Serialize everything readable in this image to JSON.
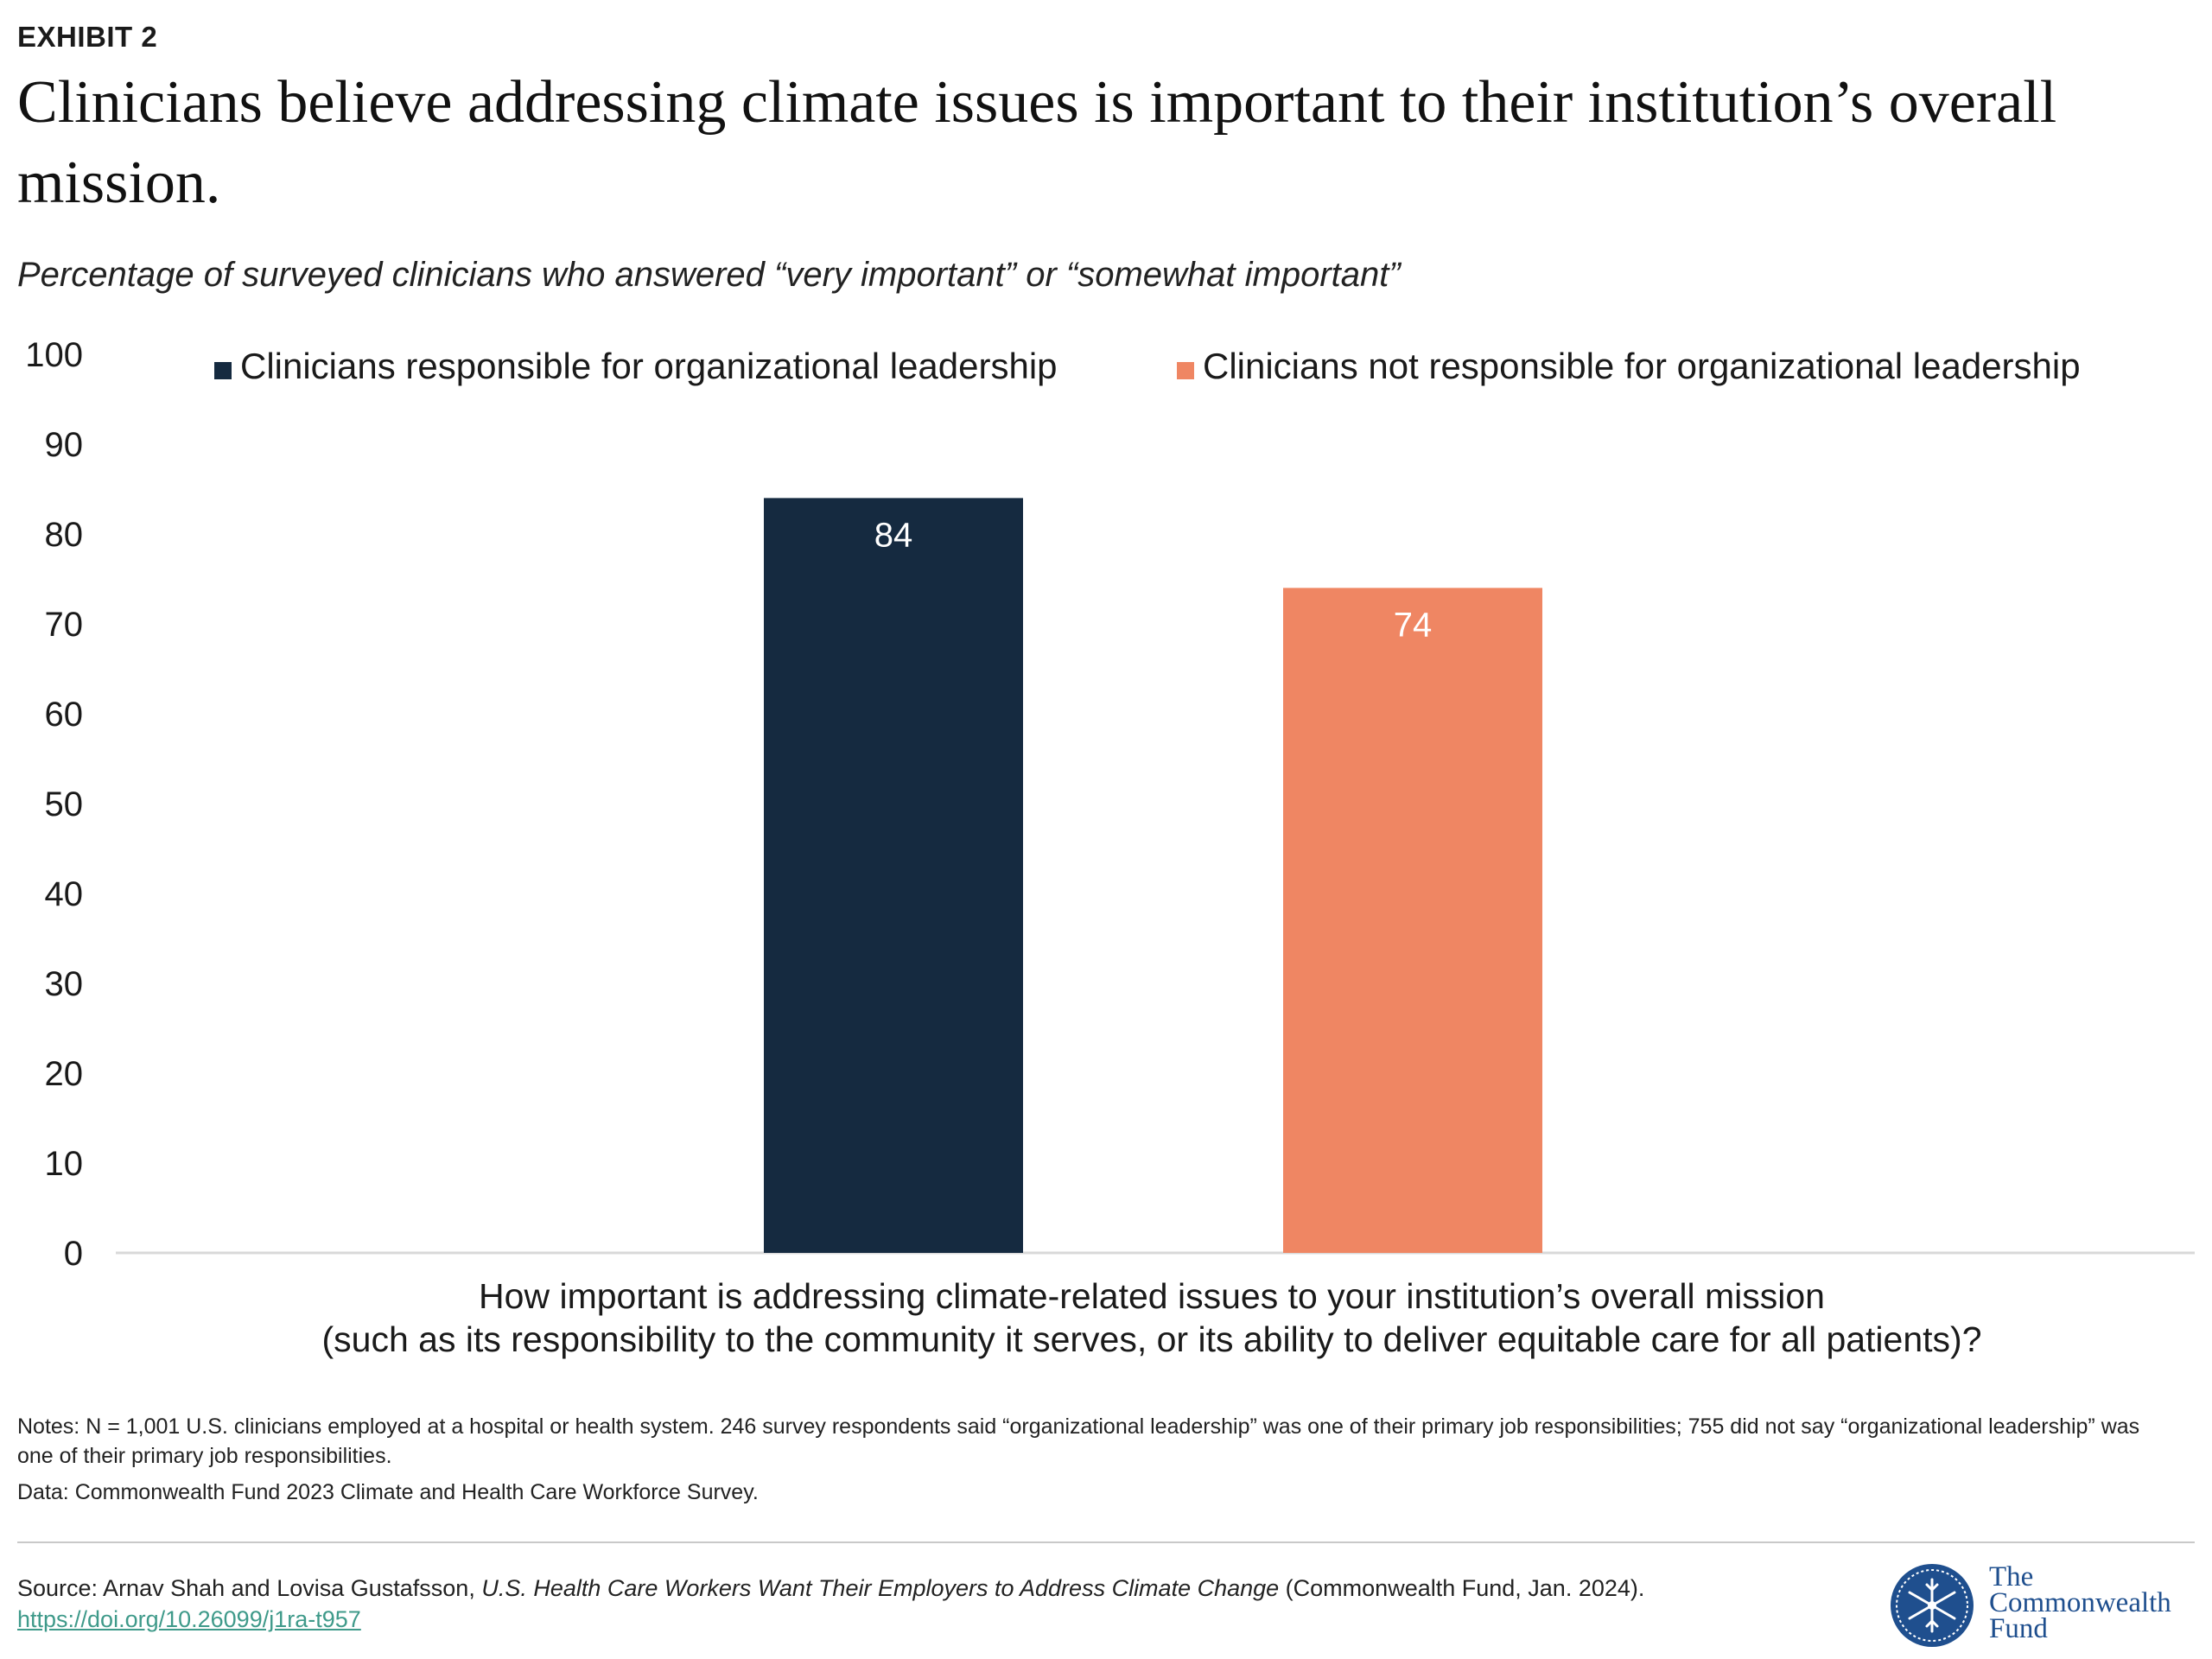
{
  "header": {
    "exhibit": "EXHIBIT 2",
    "title": "Clinicians believe addressing climate issues is important to their institution’s overall mission.",
    "subtitle": "Percentage of surveyed clinicians who answered “very important” or “somewhat important”"
  },
  "colors": {
    "series_leadership": "#152a40",
    "series_not_leadership": "#ef8663",
    "axis": "#d9d9d9"
  },
  "chart_data": {
    "type": "bar",
    "categories": [
      "How important is addressing climate-related issues to your institution’s overall mission (such as its responsibility to the community it serves, or its ability to deliver equitable care for all patients)?"
    ],
    "series": [
      {
        "name": "Clinicians responsible for organizational leadership",
        "values": [
          84
        ]
      },
      {
        "name": "Clinicians not responsible for organizational leadership",
        "values": [
          74
        ]
      }
    ],
    "ylim": [
      0,
      100
    ],
    "yticks": [
      "0",
      "10",
      "20",
      "30",
      "40",
      "50",
      "60",
      "70",
      "80",
      "90",
      "100"
    ],
    "data_labels": [
      "84",
      "74"
    ],
    "xlabel_lines": [
      "How important is addressing climate-related issues to your institution’s overall mission",
      "(such as its responsibility to the community it serves, or its ability to deliver equitable care for all patients)?"
    ],
    "legend_position": "top",
    "grid": false
  },
  "notes": {
    "notes_text": "Notes: N = 1,001 U.S. clinicians employed at a hospital or health system. 246 survey respondents said “organizational leadership” was one of their primary job responsibilities; 755 did not say “organizational leadership” was one of their primary job responsibilities.",
    "data_text": "Data: Commonwealth Fund 2023 Climate and Health Care Workforce Survey."
  },
  "source": {
    "prefix": "Source: Arnav Shah and Lovisa Gustafsson, ",
    "work_title": "U.S. Health Care Workers Want Their Employers to Address Climate Change",
    "suffix": " (Commonwealth Fund, Jan. 2024). ",
    "link": "https://doi.org/10.26099/j1ra-t957"
  },
  "logo": {
    "line1": "The",
    "line2": "Commonwealth",
    "line3": "Fund"
  }
}
